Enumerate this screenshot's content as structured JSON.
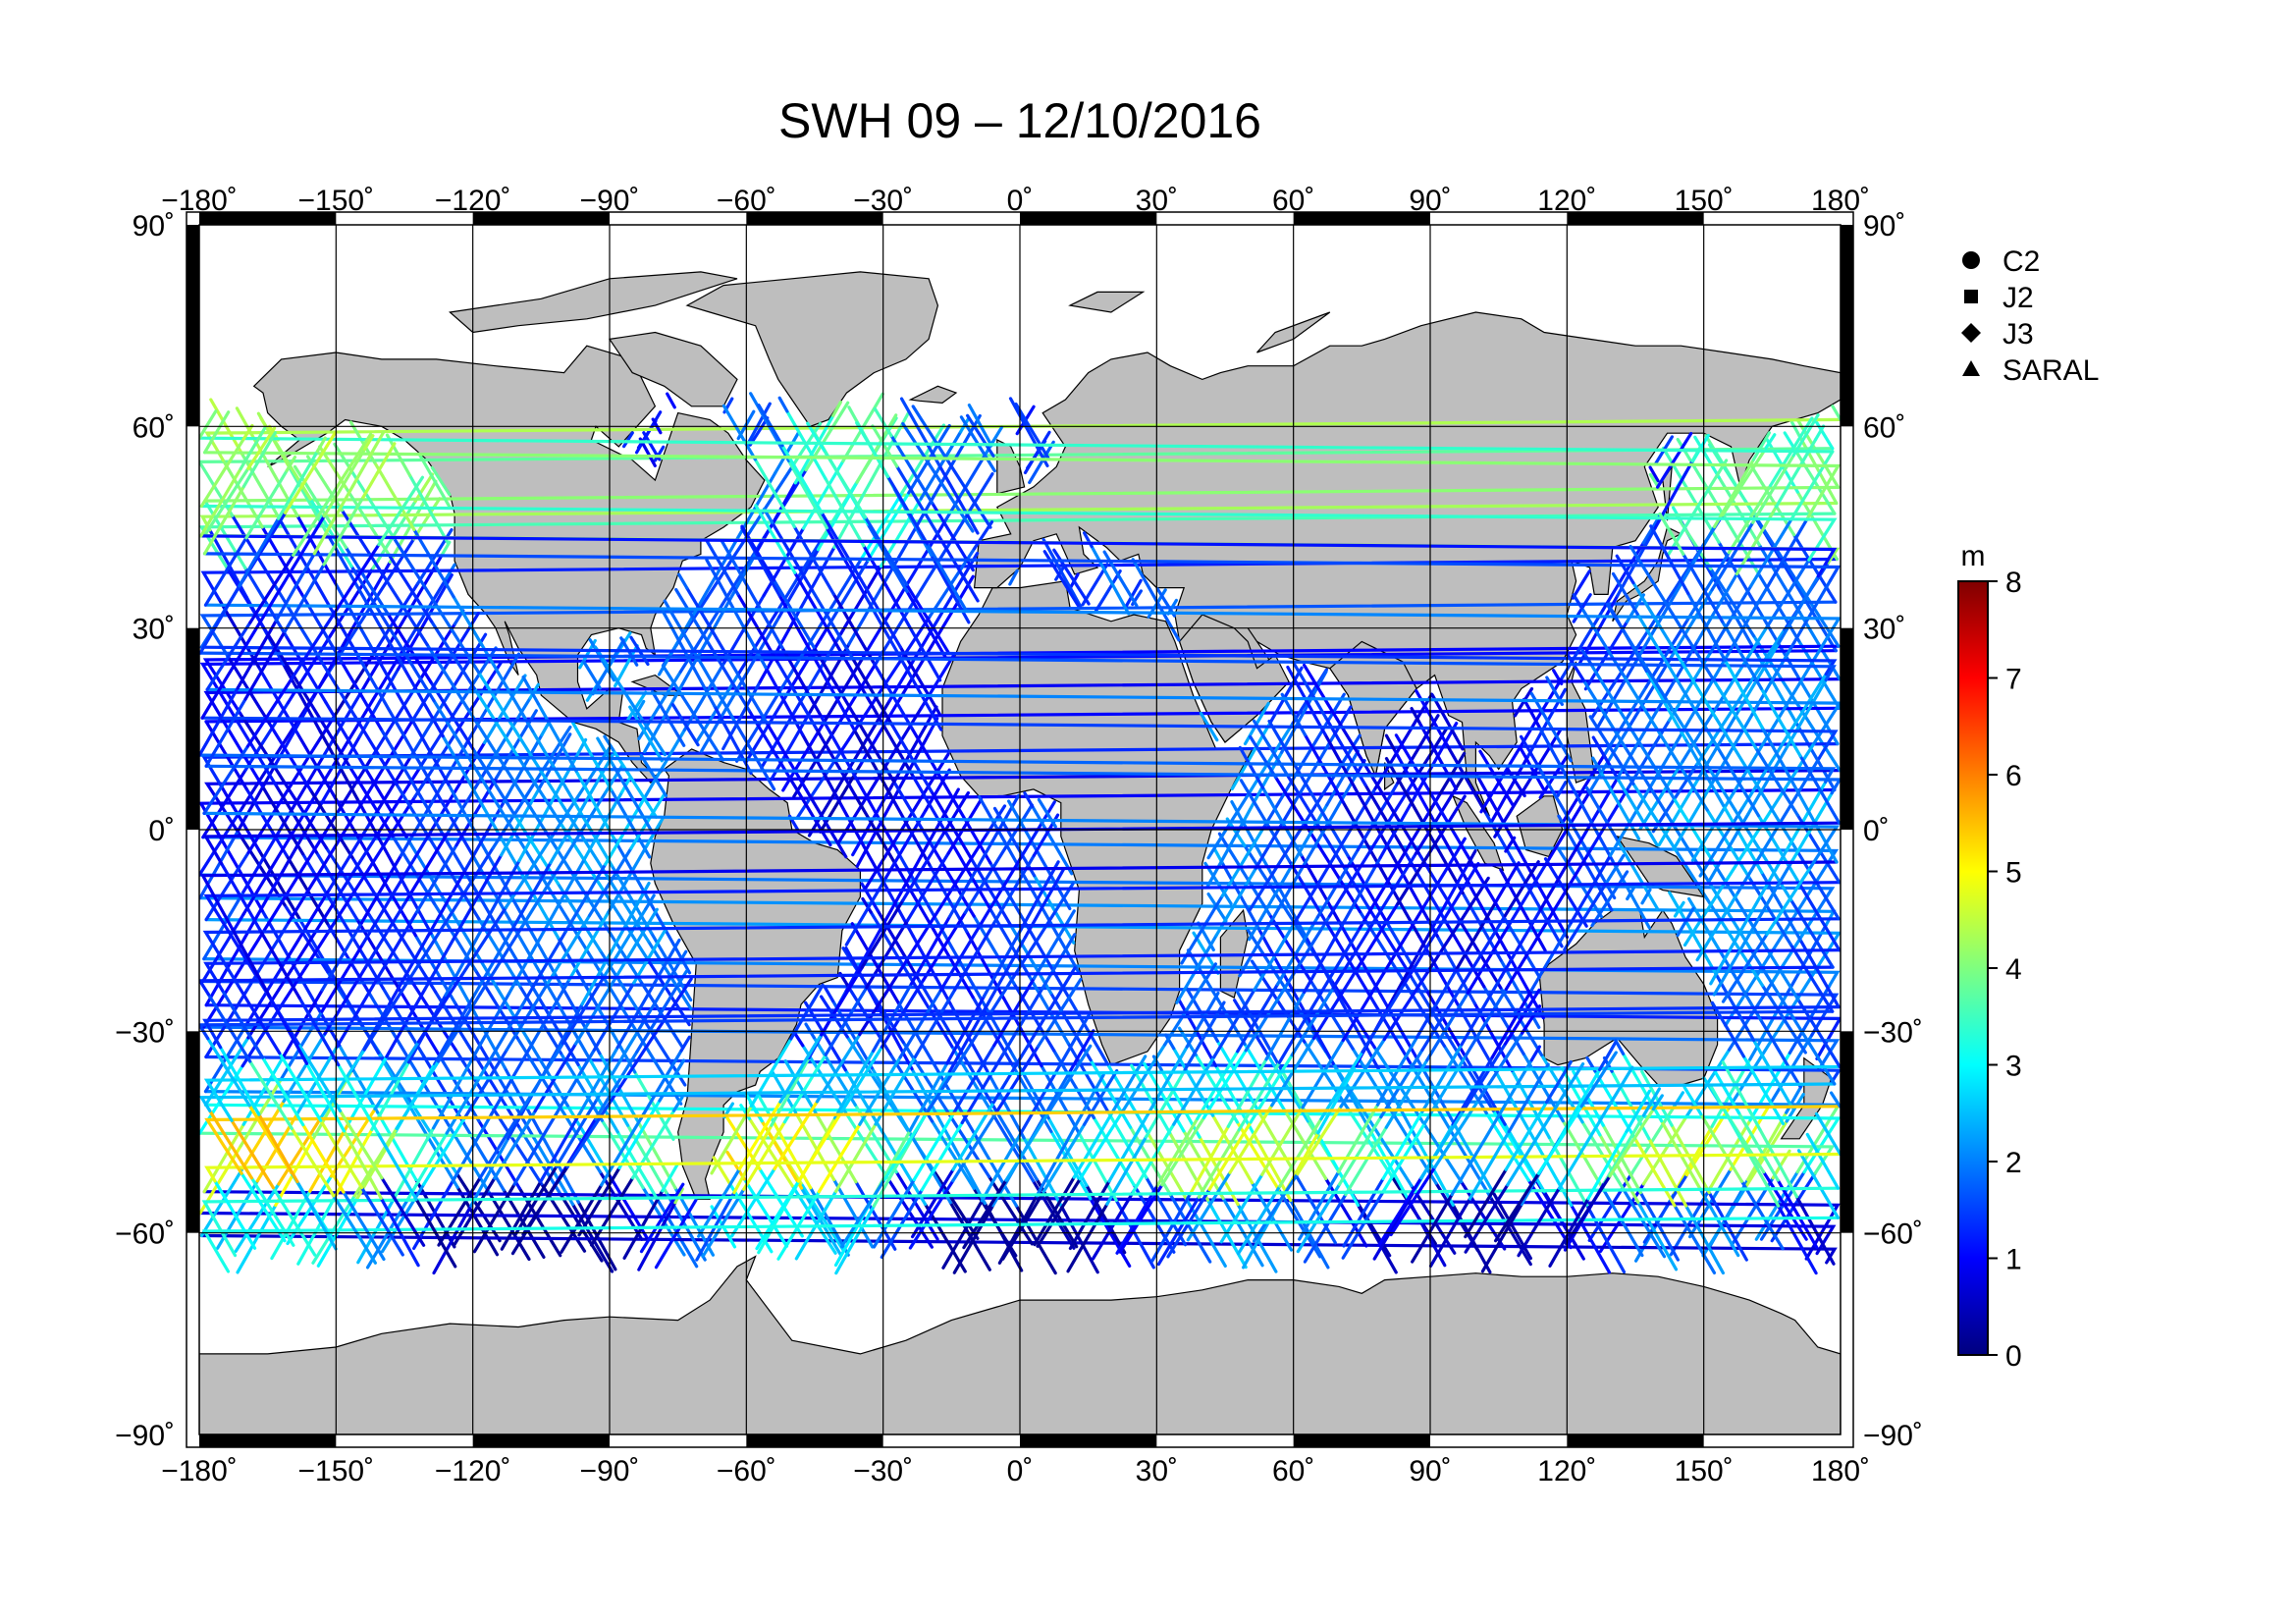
{
  "title": "SWH 09 – 12/10/2016",
  "map": {
    "projection": "equirectangular",
    "lon_range": [
      -180,
      180
    ],
    "lat_range": [
      -90,
      90
    ],
    "lon_ticks": [
      "−180˚",
      "−150˚",
      "−120˚",
      "−90˚",
      "−60˚",
      "−30˚",
      "0˚",
      "30˚",
      "60˚",
      "90˚",
      "120˚",
      "150˚",
      "180˚"
    ],
    "lat_ticks": [
      "−90˚",
      "−60˚",
      "−30˚",
      "0˚",
      "30˚",
      "60˚",
      "90˚"
    ],
    "grid": true,
    "land_color": "#bebebe",
    "ocean_color": "#ffffff"
  },
  "legend": {
    "items": [
      {
        "symbol": "circle-icon",
        "label": "C2"
      },
      {
        "symbol": "square-icon",
        "label": "J2"
      },
      {
        "symbol": "diamond-icon",
        "label": "J3"
      },
      {
        "symbol": "triangle-icon",
        "label": "SARAL"
      }
    ]
  },
  "colorbar": {
    "unit": "m",
    "min": 0,
    "max": 8,
    "tick_labels": [
      "0",
      "1",
      "2",
      "3",
      "4",
      "5",
      "6",
      "7",
      "8"
    ],
    "colormap": [
      "#00007f",
      "#0000ff",
      "#007fff",
      "#00ffff",
      "#7fff7f",
      "#ffff00",
      "#ff7f00",
      "#ff0000",
      "#7f0000"
    ]
  }
}
